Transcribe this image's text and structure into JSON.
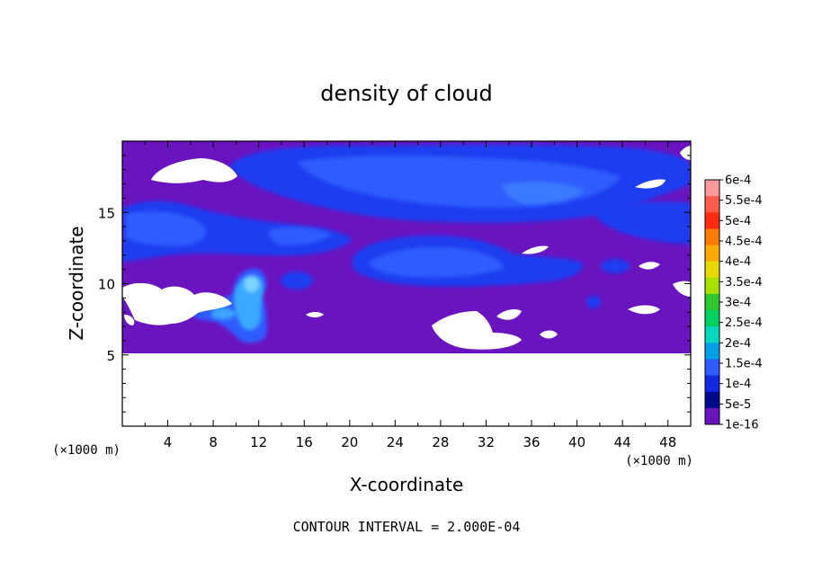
{
  "chart_data": {
    "type": "heatmap",
    "title": "density of cloud",
    "xlabel": "X-coordinate",
    "ylabel": "Z-coordinate",
    "x_unit_label": "(×1000 m)",
    "x_unit_label_right": "(×1000 m)",
    "xlim": [
      0,
      50
    ],
    "ylim": [
      0,
      20
    ],
    "x_ticks": [
      4,
      8,
      12,
      16,
      20,
      24,
      28,
      32,
      36,
      40,
      44,
      48
    ],
    "y_ticks": [
      5,
      10,
      15
    ],
    "colorbar": {
      "labels": [
        "6e-4",
        "5.5e-4",
        "5e-4",
        "4.5e-4",
        "4e-4",
        "3.5e-4",
        "3e-4",
        "2.5e-4",
        "2e-4",
        "1.5e-4",
        "1e-4",
        "5e-5",
        "1e-16"
      ],
      "colors": [
        "#ff9a9a",
        "#ff5a4a",
        "#ff2a10",
        "#ff7a00",
        "#ffaa00",
        "#e8d800",
        "#a8e000",
        "#30c830",
        "#00d060",
        "#00d8c0",
        "#00a0e8",
        "#2e5cff",
        "#1428e0",
        "#000a8c",
        "#6a14c0"
      ]
    },
    "contour_interval": "CONTOUR INTERVAL = 2.000E-04",
    "grid": false
  }
}
